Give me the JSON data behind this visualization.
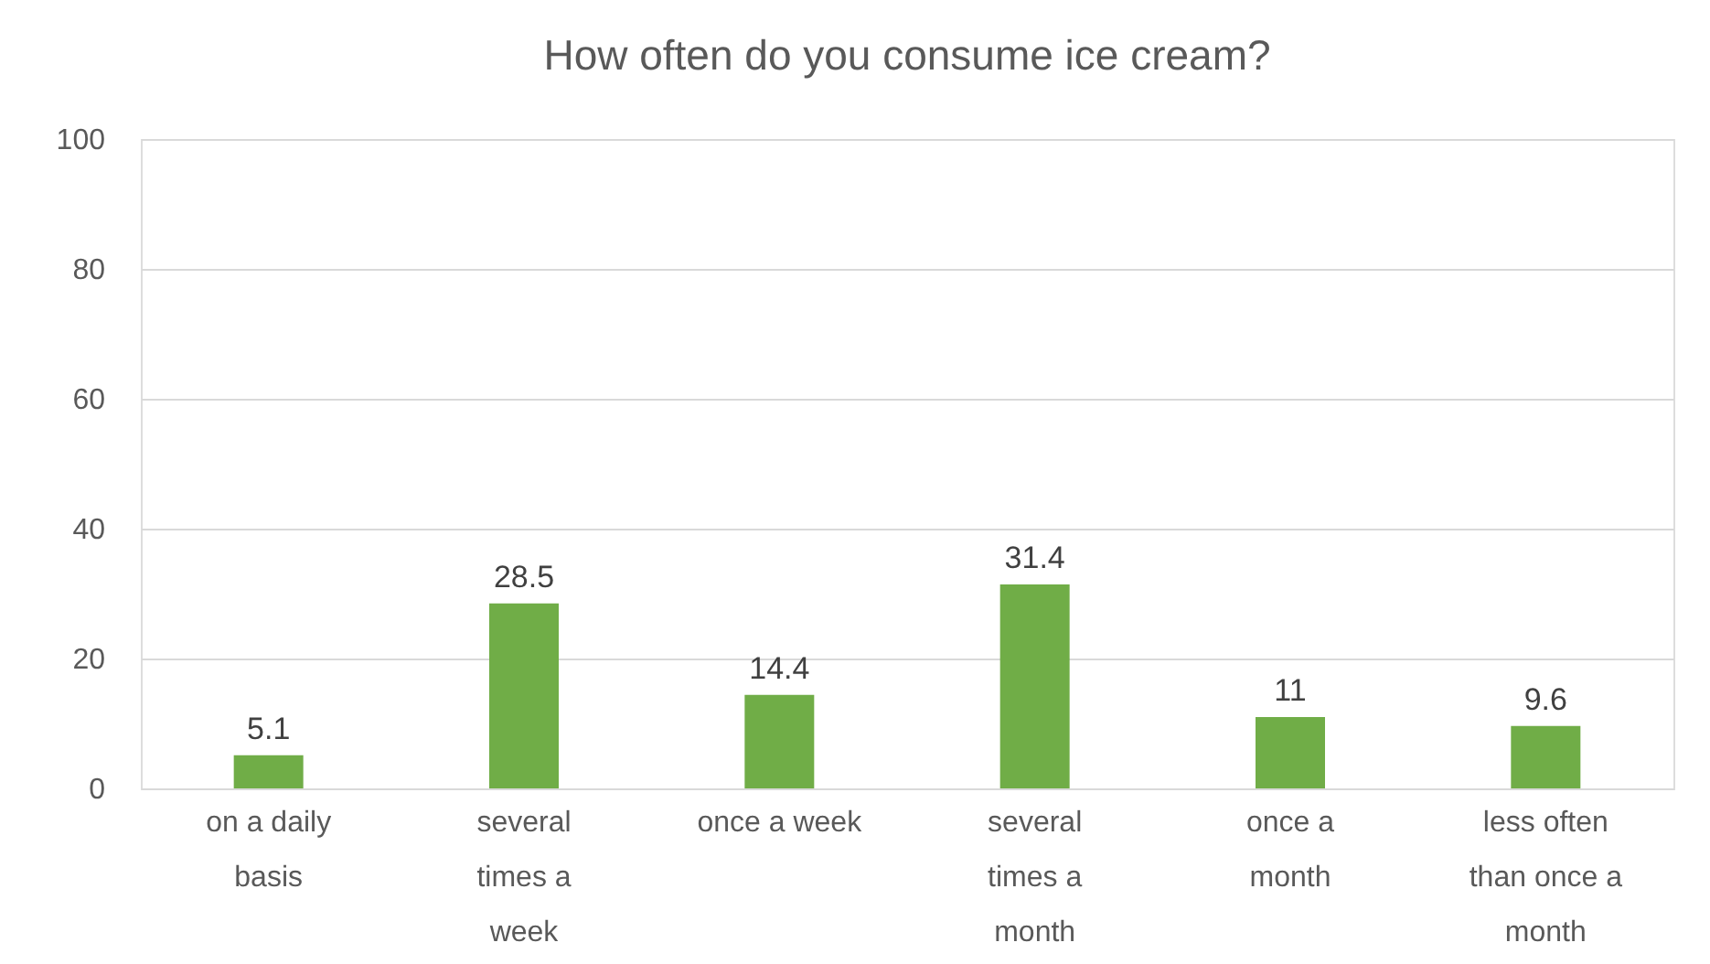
{
  "chart_data": {
    "type": "bar",
    "title": "How often do you consume ice cream?",
    "categories": [
      "on a daily basis",
      "several times a week",
      "once a week",
      "several times a month",
      "once a month",
      "less often than once a month"
    ],
    "values": [
      5.1,
      28.5,
      14.4,
      31.4,
      11,
      9.6
    ],
    "color": "#70ad47",
    "ylim": [
      0,
      100
    ],
    "yticks": [
      0,
      20,
      40,
      60,
      80,
      100
    ],
    "grid": "y",
    "data_labels": true
  }
}
